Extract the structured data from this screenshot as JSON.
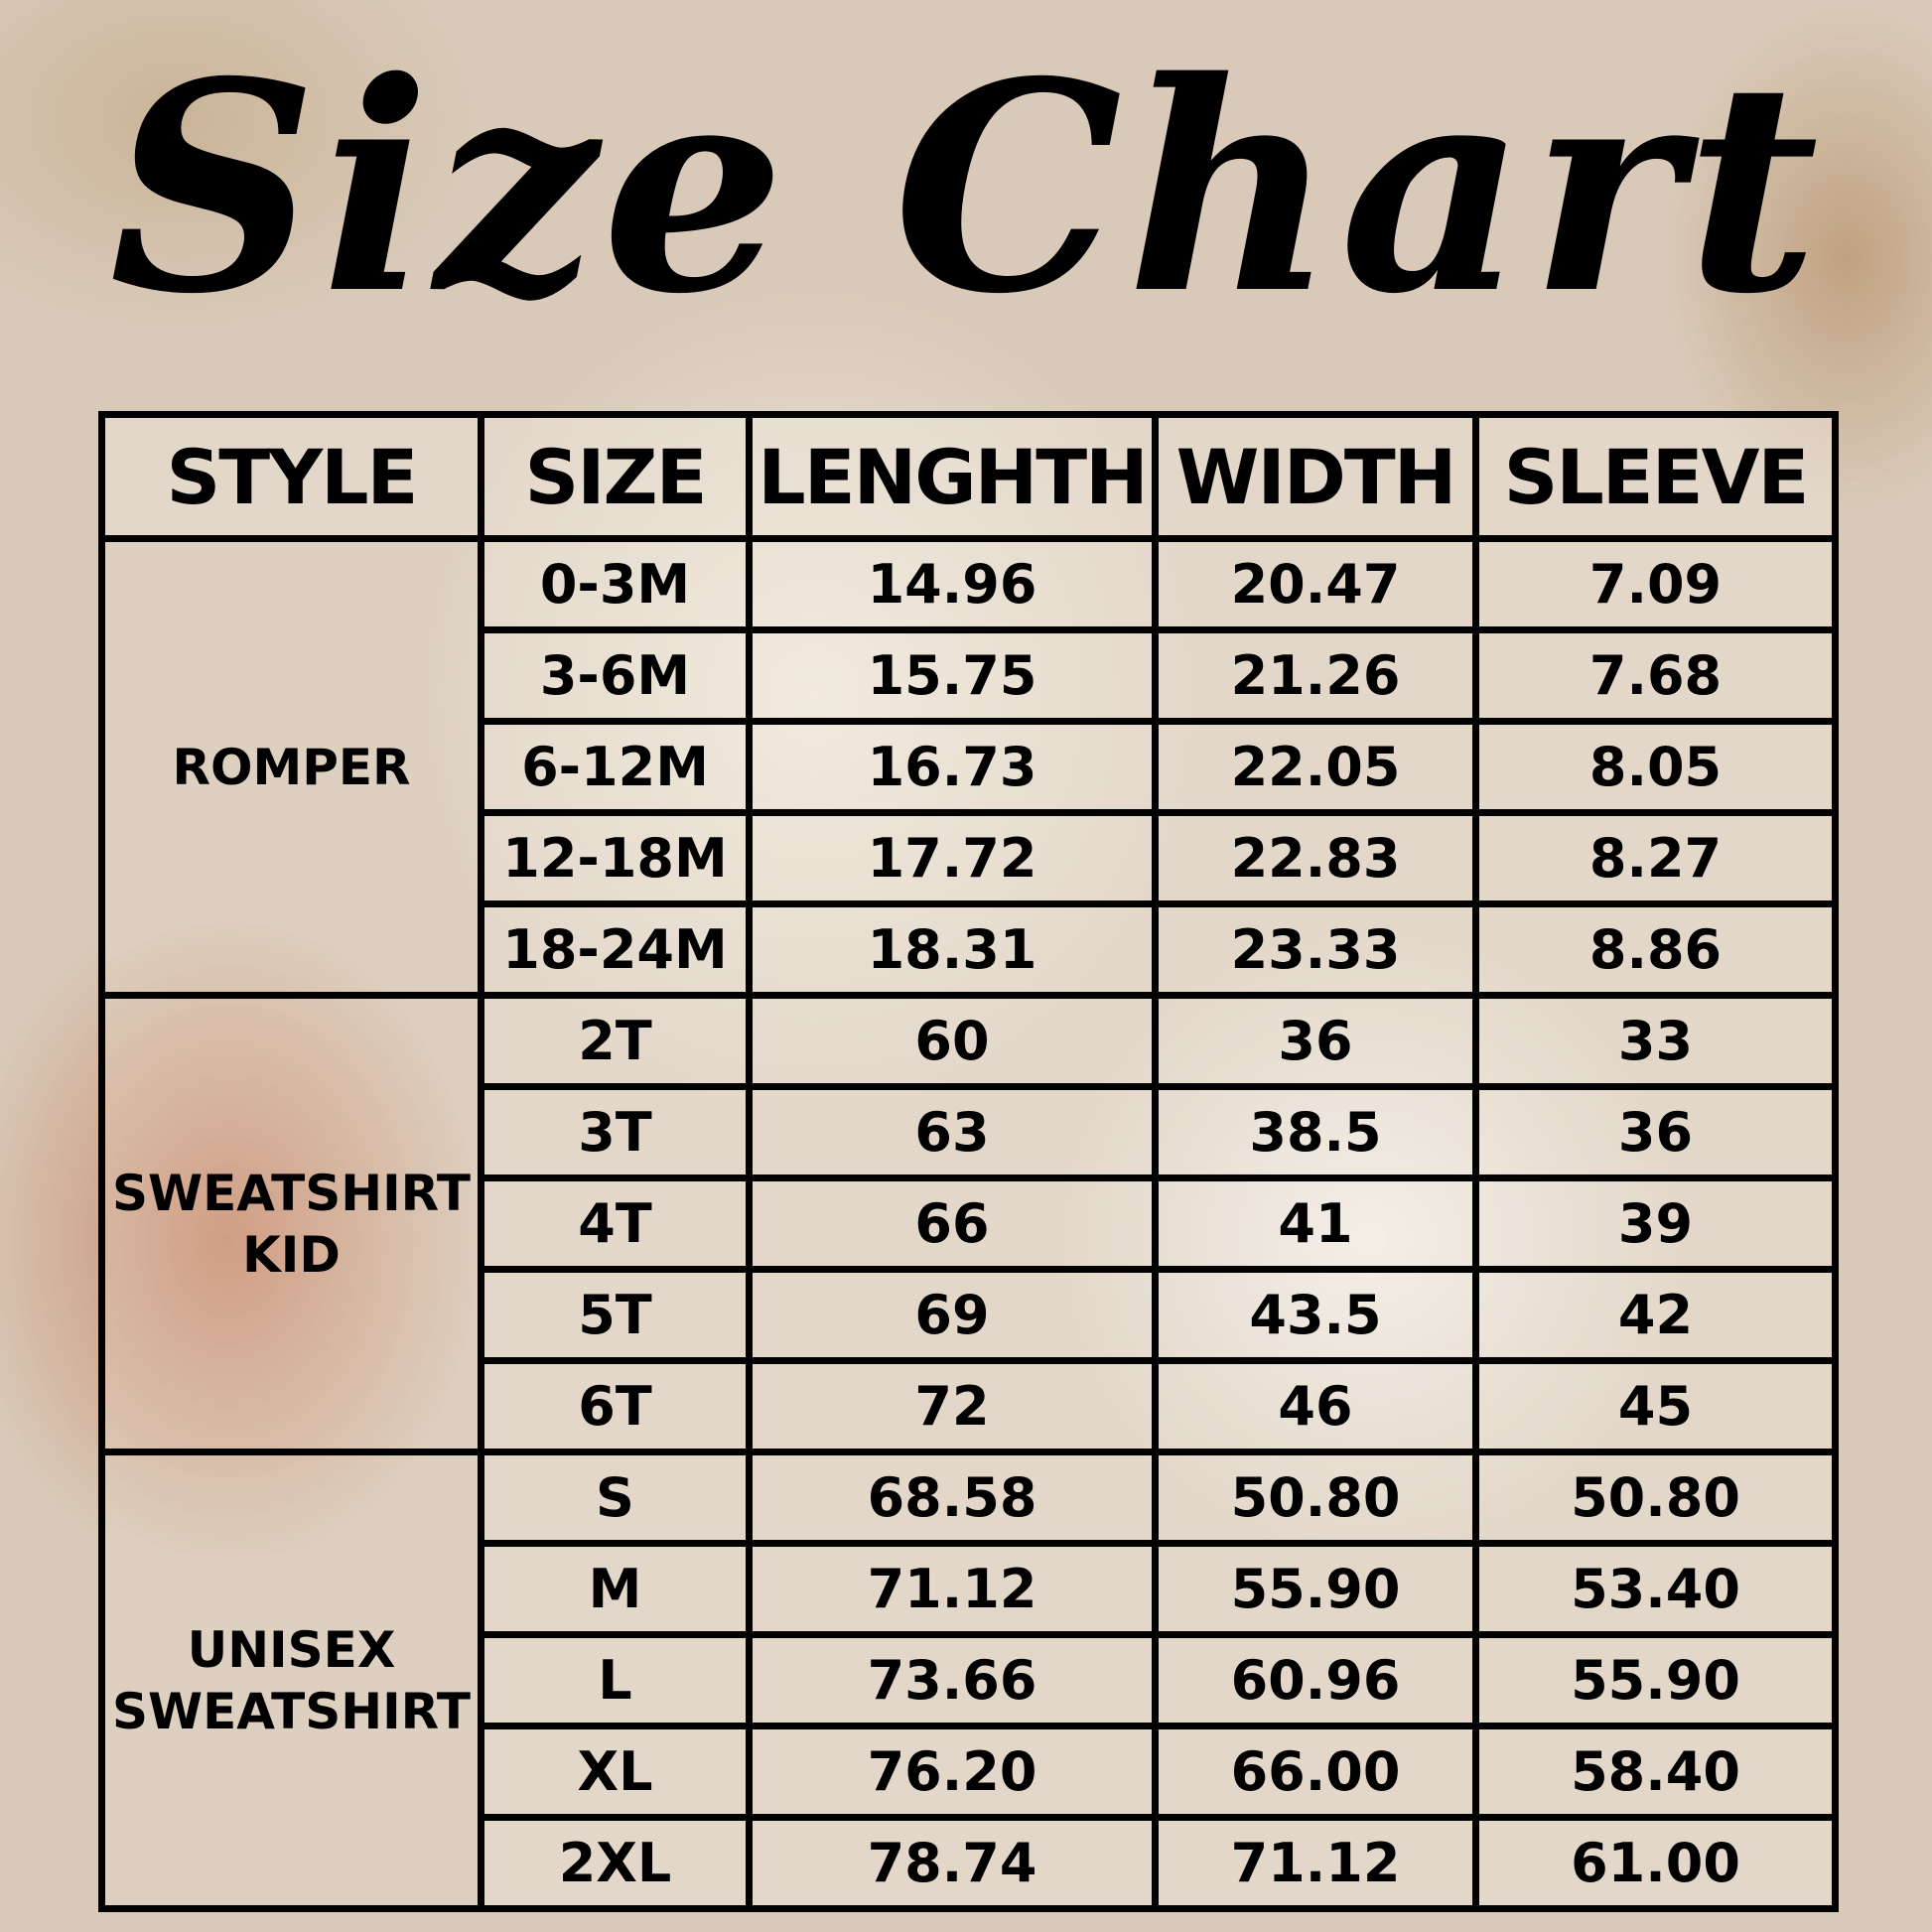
{
  "title": "Size Chart",
  "headers": [
    "STYLE",
    "SIZE",
    "LENGHTH",
    "WIDTH",
    "SLEEVE"
  ],
  "groups": [
    {
      "style": "ROMPER",
      "rows": [
        [
          "0-3M",
          "14.96",
          "20.47",
          "7.09"
        ],
        [
          "3-6M",
          "15.75",
          "21.26",
          "7.68"
        ],
        [
          "6-12M",
          "16.73",
          "22.05",
          "8.05"
        ],
        [
          "12-18M",
          "17.72",
          "22.83",
          "8.27"
        ],
        [
          "18-24M",
          "18.31",
          "23.33",
          "8.86"
        ]
      ]
    },
    {
      "style": "SWEATSHIRT KID",
      "rows": [
        [
          "2T",
          "60",
          "36",
          "33"
        ],
        [
          "3T",
          "63",
          "38.5",
          "36"
        ],
        [
          "4T",
          "66",
          "41",
          "39"
        ],
        [
          "5T",
          "69",
          "43.5",
          "42"
        ],
        [
          "6T",
          "72",
          "46",
          "45"
        ]
      ]
    },
    {
      "style": "UNISEX SWEATSHIRT",
      "rows": [
        [
          "S",
          "68.58",
          "50.80",
          "50.80"
        ],
        [
          "M",
          "71.12",
          "55.90",
          "53.40"
        ],
        [
          "L",
          "73.66",
          "60.96",
          "55.90"
        ],
        [
          "XL",
          "76.20",
          "66.00",
          "58.40"
        ],
        [
          "2XL",
          "78.74",
          "71.12",
          "61.00"
        ]
      ]
    }
  ]
}
